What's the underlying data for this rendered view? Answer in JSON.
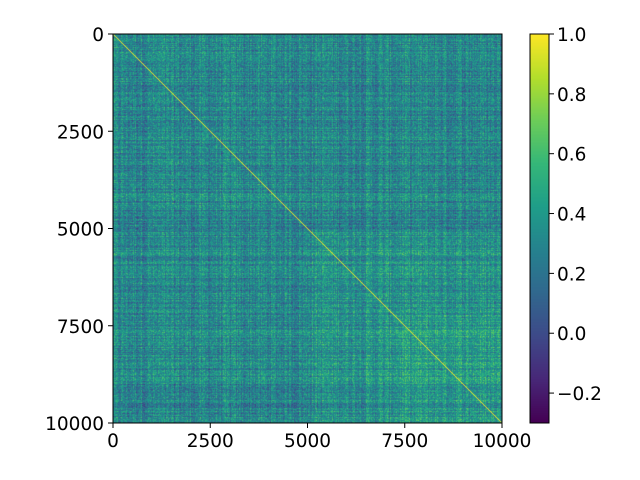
{
  "chart_data": {
    "type": "heatmap",
    "title": "",
    "xlabel": "",
    "ylabel": "",
    "x_range": [
      0,
      10000
    ],
    "y_range": [
      0,
      10000
    ],
    "y_axis_inverted": true,
    "x_ticks": [
      "0",
      "2500",
      "5000",
      "7500",
      "10000"
    ],
    "y_ticks": [
      "0",
      "2500",
      "5000",
      "7500",
      "10000"
    ],
    "x_tick_values": [
      0,
      2500,
      5000,
      7500,
      10000
    ],
    "y_tick_values": [
      0,
      2500,
      5000,
      7500,
      10000
    ],
    "colormap": "viridis",
    "color_range": [
      -0.3,
      1.0
    ],
    "colorbar_ticks": [
      "1.0",
      "0.8",
      "0.6",
      "0.4",
      "0.2",
      "0.0",
      "−0.2"
    ],
    "colorbar_tick_values": [
      1.0,
      0.8,
      0.6,
      0.4,
      0.2,
      0.0,
      -0.2
    ],
    "diagonal_value": 1.0,
    "typical_off_diagonal_range": [
      0.1,
      0.6
    ],
    "grid": false,
    "legend": "colorbar-right"
  },
  "colors": {
    "diagonal": "#fde725",
    "low": "#440154",
    "high": "#fde725",
    "background": "#ffffff"
  }
}
